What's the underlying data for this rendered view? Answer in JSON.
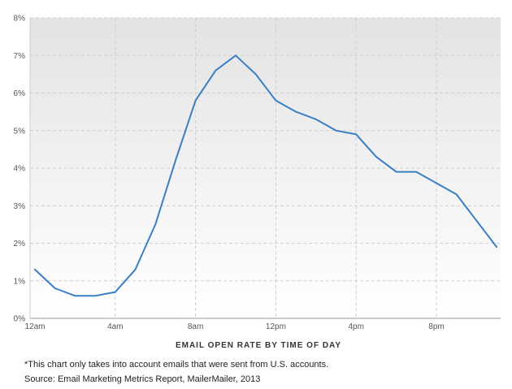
{
  "chart_data": {
    "type": "line",
    "xlabel": "EMAIL OPEN RATE BY TIME OF DAY",
    "ylabel": "",
    "x_tick_labels": [
      "12am",
      "4am",
      "8am",
      "12pm",
      "4pm",
      "8pm"
    ],
    "y_tick_labels": [
      "0%",
      "1%",
      "2%",
      "3%",
      "4%",
      "5%",
      "6%",
      "7%",
      "8%"
    ],
    "ylim": [
      0,
      8
    ],
    "grid": true,
    "x": [
      "12am",
      "1am",
      "2am",
      "3am",
      "4am",
      "5am",
      "6am",
      "7am",
      "8am",
      "9am",
      "10am",
      "11am",
      "12pm",
      "1pm",
      "2pm",
      "3pm",
      "4pm",
      "5pm",
      "6pm",
      "7pm",
      "8pm",
      "9pm",
      "10pm",
      "11pm"
    ],
    "series": [
      {
        "values": [
          1.3,
          0.8,
          0.6,
          0.6,
          0.7,
          1.3,
          2.5,
          4.2,
          5.8,
          6.6,
          7.0,
          6.5,
          5.8,
          5.5,
          5.3,
          5.0,
          4.9,
          4.3,
          3.9,
          3.9,
          3.6,
          3.3,
          2.6,
          1.9
        ],
        "color": "#3a7fc4"
      }
    ]
  },
  "footnote": {
    "line1": "*This chart only takes into account emails that were sent from U.S. accounts.",
    "line2": "Source: Email Marketing Metrics Report, MailerMailer, 2013"
  }
}
